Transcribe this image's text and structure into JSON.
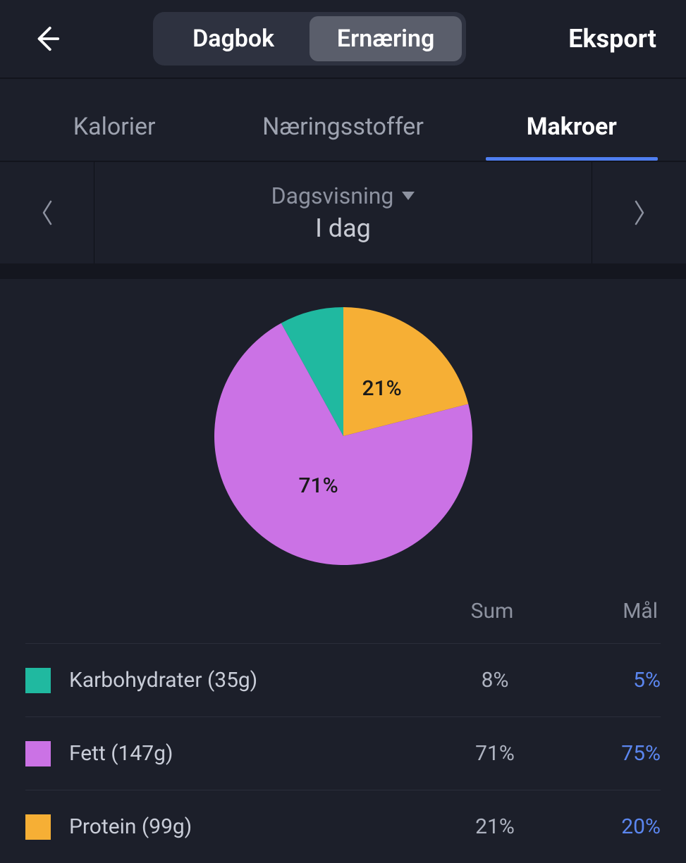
{
  "colors": {
    "bg": "#1c1f2a",
    "accent_blue": "#4f7ef0",
    "goal_text": "#5b86ef",
    "muted": "#8d92a0"
  },
  "topbar": {
    "seg_left": "Dagbok",
    "seg_right": "Ernæring",
    "export": "Eksport"
  },
  "subtabs": {
    "calories": "Kalorier",
    "nutrients": "Næringsstoffer",
    "macros": "Makroer",
    "active": "macros"
  },
  "date": {
    "viewmode": "Dagsvisning",
    "label": "I dag"
  },
  "pie": {
    "type": "pie",
    "radius": 183,
    "slices": [
      {
        "key": "protein",
        "value": 21,
        "color": "#f6af35",
        "label": "21%"
      },
      {
        "key": "fat",
        "value": 71,
        "color": "#cb72e5",
        "label": "71%"
      },
      {
        "key": "carbs",
        "value": 8,
        "color": "#20b9a0",
        "label": ""
      }
    ],
    "label_fontsize": 30,
    "label_color": "#1a1a1a",
    "background": "#1c1f2a"
  },
  "table": {
    "headers": {
      "sum": "Sum",
      "goal": "Mål"
    },
    "rows": [
      {
        "swatch": "#20b9a0",
        "name": "Karbohydrater (35g)",
        "sum": "8%",
        "goal": "5%"
      },
      {
        "swatch": "#cb72e5",
        "name": "Fett (147g)",
        "sum": "71%",
        "goal": "75%"
      },
      {
        "swatch": "#f6af35",
        "name": "Protein (99g)",
        "sum": "21%",
        "goal": "20%"
      }
    ]
  }
}
